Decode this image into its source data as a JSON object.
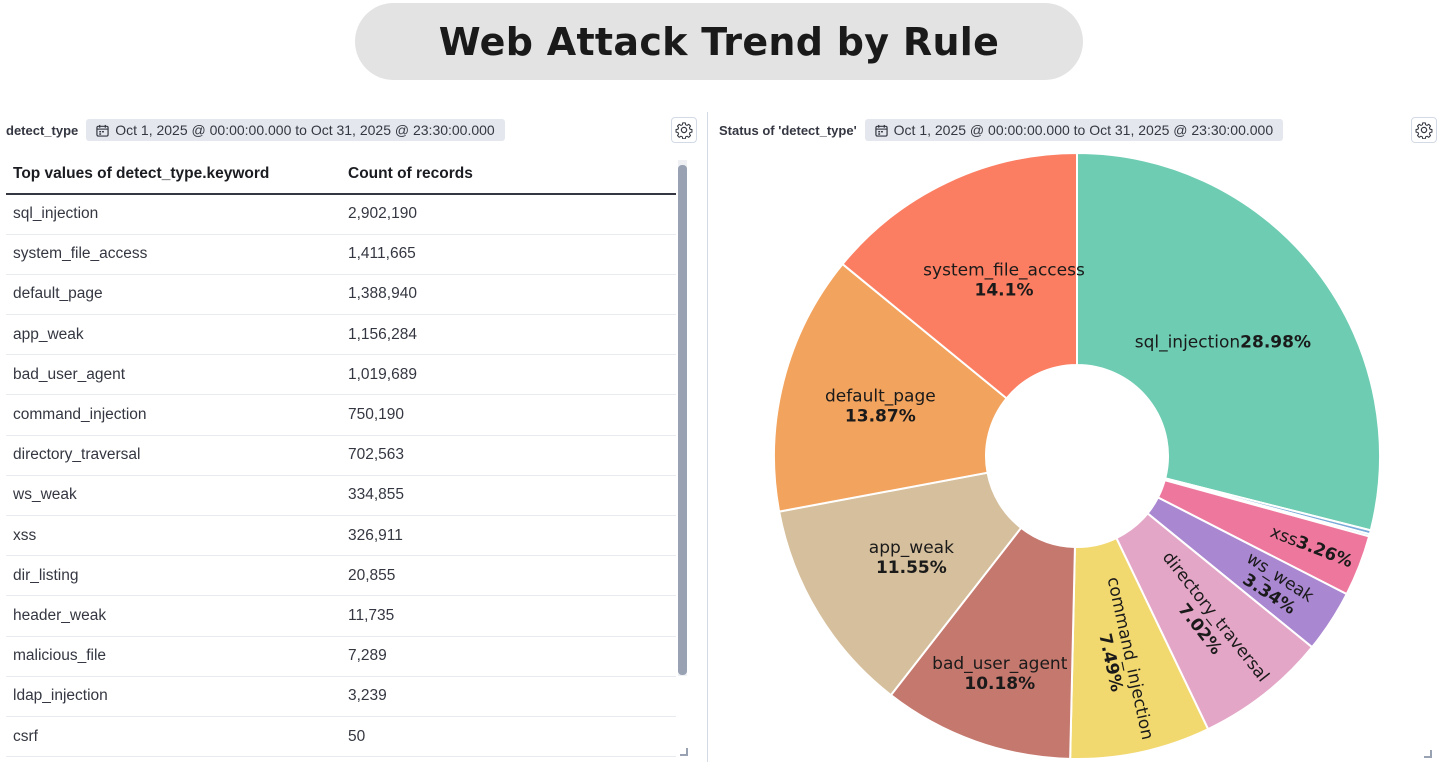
{
  "title": "Web Attack Trend by Rule",
  "left_panel": {
    "title": "detect_type",
    "time_range": "Oct 1, 2025 @ 00:00:00.000 to Oct 31, 2025 @ 23:30:00.000",
    "columns": [
      "Top values of detect_type.keyword",
      "Count of records"
    ],
    "rows": [
      [
        "sql_injection",
        "2,902,190"
      ],
      [
        "system_file_access",
        "1,411,665"
      ],
      [
        "default_page",
        "1,388,940"
      ],
      [
        "app_weak",
        "1,156,284"
      ],
      [
        "bad_user_agent",
        "1,019,689"
      ],
      [
        "command_injection",
        "750,190"
      ],
      [
        "directory_traversal",
        "702,563"
      ],
      [
        "ws_weak",
        "334,855"
      ],
      [
        "xss",
        "326,911"
      ],
      [
        "dir_listing",
        "20,855"
      ],
      [
        "header_weak",
        "11,735"
      ],
      [
        "malicious_file",
        "7,289"
      ],
      [
        "ldap_injection",
        "3,239"
      ],
      [
        "csrf",
        "50"
      ]
    ]
  },
  "right_panel": {
    "title": "Status of 'detect_type'",
    "time_range": "Oct 1, 2025 @ 00:00:00.000 to Oct 31, 2025 @ 23:30:00.000"
  },
  "chart_data": {
    "type": "pie",
    "donut": true,
    "slices": [
      {
        "label": "sql_injection",
        "pct_text": "28.98%",
        "value": 28.98,
        "color": "#6dccb1"
      },
      {
        "label": "",
        "pct_text": "",
        "value": 0.21,
        "color": "#79aad9"
      },
      {
        "label": "",
        "pct_text": "",
        "value": 0.12,
        "color": "#aad6e6"
      },
      {
        "label": "xss",
        "pct_text": "3.26%",
        "value": 3.26,
        "color": "#ee789d"
      },
      {
        "label": "ws_weak",
        "pct_text": "3.34%",
        "value": 3.34,
        "color": "#a987d1"
      },
      {
        "label": "directory_traversal",
        "pct_text": "7.02%",
        "value": 7.02,
        "color": "#e4a6c7"
      },
      {
        "label": "command_injection",
        "pct_text": "7.49%",
        "value": 7.49,
        "color": "#f1d86f"
      },
      {
        "label": "bad_user_agent",
        "pct_text": "10.18%",
        "value": 10.18,
        "color": "#c5786e"
      },
      {
        "label": "app_weak",
        "pct_text": "11.55%",
        "value": 11.55,
        "color": "#d6bf9c"
      },
      {
        "label": "default_page",
        "pct_text": "13.87%",
        "value": 13.87,
        "color": "#f2a35e"
      },
      {
        "label": "system_file_access",
        "pct_text": "14.1%",
        "value": 14.1,
        "color": "#fb7e62"
      }
    ]
  }
}
